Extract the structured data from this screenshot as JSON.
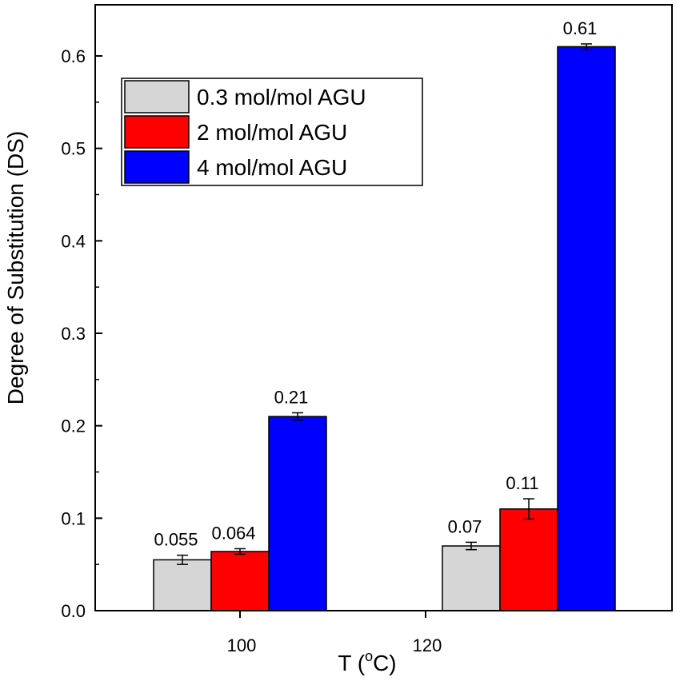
{
  "chart_data": {
    "type": "bar",
    "title": "",
    "xlabel": "T (",
    "xlabel_unit_sup": "o",
    "xlabel_unit_rest": "C)",
    "ylabel": "Degree of Substitution (DS)",
    "ylim": [
      0.0,
      0.65
    ],
    "yticks": [
      "0.0",
      "0.1",
      "0.2",
      "0.3",
      "0.4",
      "0.5",
      "0.6"
    ],
    "categories": [
      "100",
      "120"
    ],
    "legend_position": "top-left",
    "series": [
      {
        "name": "0.3 mol/mol AGU",
        "color": "#d6d6d6",
        "values": [
          0.055,
          0.07
        ],
        "errors": [
          0.005,
          0.004
        ],
        "labels": [
          "0.055",
          "0.07"
        ]
      },
      {
        "name": "2 mol/mol AGU",
        "color": "#ff0000",
        "values": [
          0.064,
          0.11
        ],
        "errors": [
          0.003,
          0.011
        ],
        "labels": [
          "0.064",
          "0.11"
        ]
      },
      {
        "name": "4 mol/mol AGU",
        "color": "#0000ff",
        "values": [
          0.21,
          0.61
        ],
        "errors": [
          0.004,
          0.003
        ],
        "labels": [
          "0.21",
          "0.61"
        ]
      }
    ]
  }
}
